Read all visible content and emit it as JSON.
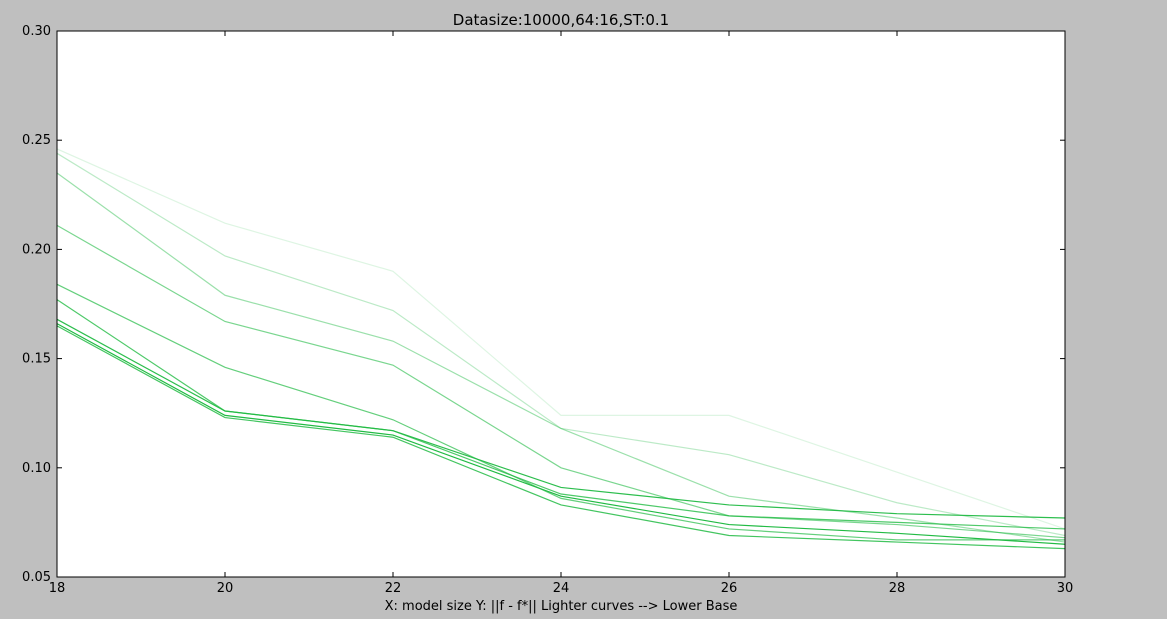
{
  "chart_data": {
    "type": "line",
    "title": "Datasize:10000,64:16,ST:0.1",
    "xlabel": "X: model size Y: ||f - f*|| Lighter curves --> Lower Base",
    "ylabel": "",
    "xlim": [
      18,
      30
    ],
    "ylim": [
      0.05,
      0.3
    ],
    "x": [
      18,
      20,
      22,
      24,
      26,
      28,
      30
    ],
    "xticks": [
      "18",
      "20",
      "22",
      "24",
      "26",
      "28",
      "30"
    ],
    "yticks": [
      "0.05",
      "0.10",
      "0.15",
      "0.20",
      "0.25",
      "0.30"
    ],
    "grid": false,
    "legend": false,
    "series": [
      {
        "values": [
          0.166,
          0.124,
          0.115,
          0.087,
          0.074,
          0.07,
          0.065
        ],
        "color": "#22bb44",
        "opacity": 1.0
      },
      {
        "values": [
          0.168,
          0.126,
          0.117,
          0.091,
          0.083,
          0.079,
          0.077
        ],
        "color": "#22bb44",
        "opacity": 0.95
      },
      {
        "values": [
          0.165,
          0.123,
          0.114,
          0.083,
          0.069,
          0.066,
          0.063
        ],
        "color": "#22bb44",
        "opacity": 0.85
      },
      {
        "values": [
          0.177,
          0.126,
          0.117,
          0.088,
          0.078,
          0.075,
          0.072
        ],
        "color": "#22bb44",
        "opacity": 0.8
      },
      {
        "values": [
          0.184,
          0.146,
          0.122,
          0.086,
          0.072,
          0.067,
          0.067
        ],
        "color": "#22bb44",
        "opacity": 0.7
      },
      {
        "values": [
          0.211,
          0.167,
          0.147,
          0.1,
          0.078,
          0.074,
          0.068
        ],
        "color": "#22bb44",
        "opacity": 0.6
      },
      {
        "values": [
          0.235,
          0.179,
          0.158,
          0.118,
          0.087,
          0.077,
          0.066
        ],
        "color": "#22bb44",
        "opacity": 0.45
      },
      {
        "values": [
          0.244,
          0.197,
          0.172,
          0.118,
          0.106,
          0.084,
          0.069
        ],
        "color": "#22bb44",
        "opacity": 0.3
      },
      {
        "values": [
          0.246,
          0.212,
          0.19,
          0.124,
          0.124,
          0.098,
          0.072
        ],
        "color": "#22bb44",
        "opacity": 0.15
      }
    ]
  }
}
